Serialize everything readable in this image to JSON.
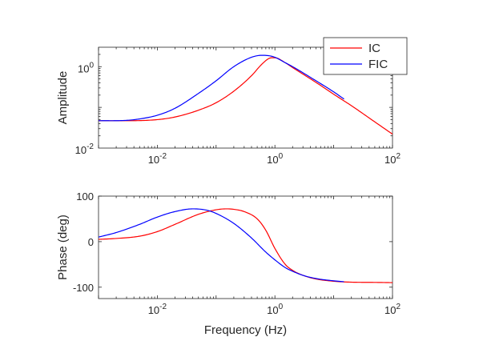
{
  "chart_data": [
    {
      "type": "line",
      "title": "",
      "xlabel": "",
      "ylabel": "Amplitude",
      "xscale": "log",
      "yscale": "log",
      "xlim": [
        0.001,
        100
      ],
      "ylim": [
        0.01,
        3
      ],
      "xticks": [
        {
          "value": 0.01,
          "base": "10",
          "exp": "-2"
        },
        {
          "value": 1,
          "base": "10",
          "exp": "0"
        },
        {
          "value": 100,
          "base": "10",
          "exp": "2"
        }
      ],
      "yticks": [
        {
          "value": 0.01,
          "base": "10",
          "exp": "-2"
        },
        {
          "value": 1,
          "base": "10",
          "exp": "0"
        }
      ],
      "legend": {
        "position": "top-right",
        "entries": [
          "IC",
          "FIC"
        ]
      },
      "series": [
        {
          "name": "IC",
          "color": "#ff0000",
          "x": [
            0.001,
            0.003,
            0.01,
            0.02,
            0.05,
            0.1,
            0.2,
            0.4,
            0.6,
            0.8,
            1,
            1.5,
            2,
            5,
            10,
            20,
            50,
            100
          ],
          "y": [
            0.047,
            0.047,
            0.05,
            0.058,
            0.085,
            0.13,
            0.25,
            0.6,
            1.15,
            1.6,
            1.65,
            1.25,
            0.95,
            0.41,
            0.21,
            0.11,
            0.044,
            0.022
          ]
        },
        {
          "name": "FIC",
          "color": "#0000ff",
          "x": [
            0.001,
            0.003,
            0.005,
            0.01,
            0.02,
            0.05,
            0.1,
            0.2,
            0.4,
            0.6,
            0.8,
            1,
            1.5,
            2,
            5,
            10,
            15
          ],
          "y": [
            0.047,
            0.048,
            0.052,
            0.064,
            0.095,
            0.22,
            0.45,
            1.0,
            1.7,
            1.9,
            1.85,
            1.7,
            1.25,
            1.0,
            0.45,
            0.24,
            0.16
          ]
        }
      ]
    },
    {
      "type": "line",
      "title": "",
      "xlabel": "Frequency (Hz)",
      "ylabel": "Phase (deg)",
      "xscale": "log",
      "xlim": [
        0.001,
        100
      ],
      "ylim": [
        -125,
        100
      ],
      "xticks": [
        {
          "value": 0.01,
          "base": "10",
          "exp": "-2"
        },
        {
          "value": 1,
          "base": "10",
          "exp": "0"
        },
        {
          "value": 100,
          "base": "10",
          "exp": "2"
        }
      ],
      "yticks": [
        {
          "value": 100,
          "label": "100"
        },
        {
          "value": 0,
          "label": "0"
        },
        {
          "value": -100,
          "label": "-100"
        }
      ],
      "series": [
        {
          "name": "IC",
          "color": "#ff0000",
          "x": [
            0.001,
            0.002,
            0.005,
            0.01,
            0.02,
            0.05,
            0.1,
            0.15,
            0.2,
            0.3,
            0.5,
            0.7,
            1,
            1.5,
            2,
            3,
            5,
            10,
            20,
            50,
            100
          ],
          "y": [
            5,
            7,
            12,
            22,
            38,
            60,
            70,
            72,
            71,
            66,
            50,
            25,
            -15,
            -50,
            -63,
            -74,
            -82,
            -87,
            -89,
            -89.5,
            -90
          ]
        },
        {
          "name": "FIC",
          "color": "#0000ff",
          "x": [
            0.001,
            0.002,
            0.005,
            0.01,
            0.02,
            0.04,
            0.07,
            0.1,
            0.2,
            0.4,
            0.7,
            1,
            1.5,
            2,
            3,
            5,
            10,
            15
          ],
          "y": [
            10,
            20,
            38,
            54,
            66,
            72,
            69,
            62,
            40,
            8,
            -23,
            -40,
            -57,
            -65,
            -74,
            -81,
            -86,
            -88
          ]
        }
      ]
    }
  ]
}
